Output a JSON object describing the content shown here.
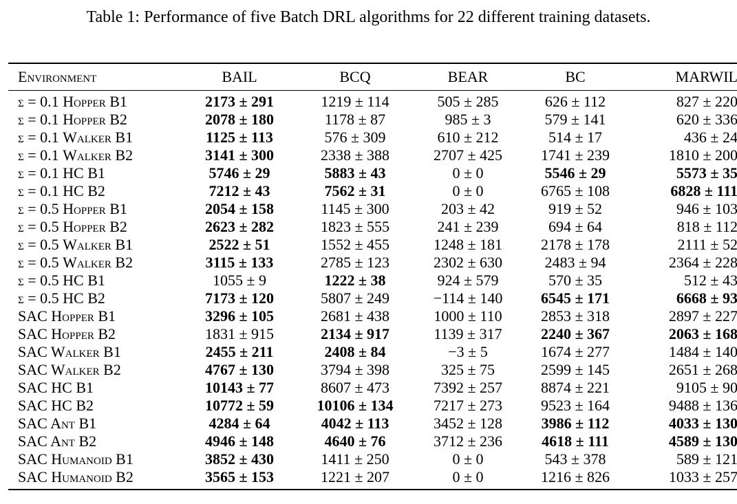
{
  "caption": "Table 1: Performance of five Batch DRL algorithms for 22 different training datasets.",
  "columns": [
    "Environment",
    "BAIL",
    "BCQ",
    "BEAR",
    "BC",
    "MARWIL"
  ],
  "rows": [
    {
      "env": "σ = 0.1 Hopper B1",
      "values": [
        "2173 ± 291",
        "1219 ± 114",
        "505 ± 285",
        "626 ± 112",
        "827 ± 220"
      ],
      "bold": [
        true,
        false,
        false,
        false,
        false
      ]
    },
    {
      "env": "σ = 0.1 Hopper B2",
      "values": [
        "2078 ± 180",
        "1178 ± 87",
        "985 ± 3",
        "579 ± 141",
        "620 ± 336"
      ],
      "bold": [
        true,
        false,
        false,
        false,
        false
      ]
    },
    {
      "env": "σ = 0.1 Walker B1",
      "values": [
        "1125 ± 113",
        "576 ± 309",
        "610 ± 212",
        "514 ± 17",
        "436 ± 24"
      ],
      "bold": [
        true,
        false,
        false,
        false,
        false
      ]
    },
    {
      "env": "σ = 0.1 Walker B2",
      "values": [
        "3141 ± 300",
        "2338 ± 388",
        "2707 ± 425",
        "1741 ± 239",
        "1810 ± 200"
      ],
      "bold": [
        true,
        false,
        false,
        false,
        false
      ]
    },
    {
      "env": "σ = 0.1 HC B1",
      "values": [
        "5746 ± 29",
        "5883 ± 43",
        "0 ± 0",
        "5546 ± 29",
        "5573 ± 35"
      ],
      "bold": [
        true,
        true,
        false,
        true,
        true
      ]
    },
    {
      "env": "σ = 0.1 HC B2",
      "values": [
        "7212 ± 43",
        "7562 ± 31",
        "0 ± 0",
        "6765 ± 108",
        "6828 ± 111"
      ],
      "bold": [
        true,
        true,
        false,
        false,
        true
      ]
    },
    {
      "env": "σ = 0.5 Hopper B1",
      "values": [
        "2054 ± 158",
        "1145 ± 300",
        "203 ± 42",
        "919 ± 52",
        "946 ± 103"
      ],
      "bold": [
        true,
        false,
        false,
        false,
        false
      ]
    },
    {
      "env": "σ = 0.5 Hopper B2",
      "values": [
        "2623 ± 282",
        "1823 ± 555",
        "241 ± 239",
        "694 ± 64",
        "818 ± 112"
      ],
      "bold": [
        true,
        false,
        false,
        false,
        false
      ]
    },
    {
      "env": "σ = 0.5 Walker B1",
      "values": [
        "2522 ± 51",
        "1552 ± 455",
        "1248 ± 181",
        "2178 ± 178",
        "2111 ± 52"
      ],
      "bold": [
        true,
        false,
        false,
        false,
        false
      ]
    },
    {
      "env": "σ = 0.5 Walker B2",
      "values": [
        "3115 ± 133",
        "2785 ± 123",
        "2302 ± 630",
        "2483 ± 94",
        "2364 ± 228"
      ],
      "bold": [
        true,
        false,
        false,
        false,
        false
      ]
    },
    {
      "env": "σ = 0.5 HC B1",
      "values": [
        "1055 ± 9",
        "1222 ± 38",
        "924 ± 579",
        "570 ± 35",
        "512 ± 43"
      ],
      "bold": [
        false,
        true,
        false,
        false,
        false
      ]
    },
    {
      "env": "σ = 0.5 HC B2",
      "values": [
        "7173 ± 120",
        "5807 ± 249",
        "−114 ± 140",
        "6545 ± 171",
        "6668 ± 93"
      ],
      "bold": [
        true,
        false,
        false,
        true,
        true
      ]
    },
    {
      "env": "SAC Hopper B1",
      "values": [
        "3296 ± 105",
        "2681 ± 438",
        "1000 ± 110",
        "2853 ± 318",
        "2897 ± 227"
      ],
      "bold": [
        true,
        false,
        false,
        false,
        false
      ]
    },
    {
      "env": "SAC Hopper B2",
      "values": [
        "1831 ± 915",
        "2134 ± 917",
        "1139 ± 317",
        "2240 ± 367",
        "2063 ± 168"
      ],
      "bold": [
        false,
        true,
        false,
        true,
        true
      ]
    },
    {
      "env": "SAC Walker B1",
      "values": [
        "2455 ± 211",
        "2408 ± 84",
        "−3 ± 5",
        "1674 ± 277",
        "1484 ± 140"
      ],
      "bold": [
        true,
        true,
        false,
        false,
        false
      ]
    },
    {
      "env": "SAC Walker B2",
      "values": [
        "4767 ± 130",
        "3794 ± 398",
        "325 ± 75",
        "2599 ± 145",
        "2651 ± 268"
      ],
      "bold": [
        true,
        false,
        false,
        false,
        false
      ]
    },
    {
      "env": "SAC HC B1",
      "values": [
        "10143 ± 77",
        "8607 ± 473",
        "7392 ± 257",
        "8874 ± 221",
        "9105 ± 90"
      ],
      "bold": [
        true,
        false,
        false,
        false,
        false
      ]
    },
    {
      "env": "SAC HC B2",
      "values": [
        "10772 ± 59",
        "10106 ± 134",
        "7217 ± 273",
        "9523 ± 164",
        "9488 ± 136"
      ],
      "bold": [
        true,
        true,
        false,
        false,
        false
      ]
    },
    {
      "env": "SAC Ant B1",
      "values": [
        "4284 ± 64",
        "4042 ± 113",
        "3452 ± 128",
        "3986 ± 112",
        "4033 ± 130"
      ],
      "bold": [
        true,
        true,
        false,
        true,
        true
      ]
    },
    {
      "env": "SAC Ant B2",
      "values": [
        "4946 ± 148",
        "4640 ± 76",
        "3712 ± 236",
        "4618 ± 111",
        "4589 ± 130"
      ],
      "bold": [
        true,
        true,
        false,
        true,
        true
      ]
    },
    {
      "env": "SAC Humanoid B1",
      "values": [
        "3852 ± 430",
        "1411 ± 250",
        "0 ± 0",
        "543 ± 378",
        "589 ± 121"
      ],
      "bold": [
        true,
        false,
        false,
        false,
        false
      ]
    },
    {
      "env": "SAC Humanoid B2",
      "values": [
        "3565 ± 153",
        "1221 ± 207",
        "0 ± 0",
        "1216 ± 826",
        "1033 ± 257"
      ],
      "bold": [
        true,
        false,
        false,
        false,
        false
      ]
    }
  ]
}
